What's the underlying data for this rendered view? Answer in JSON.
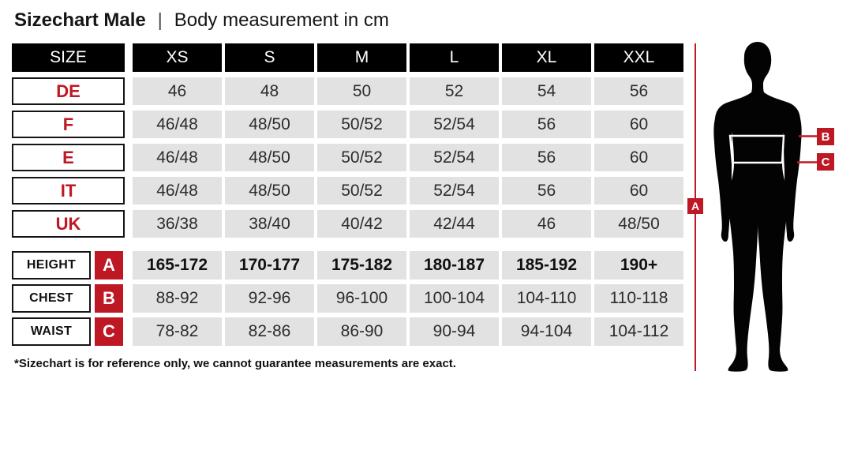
{
  "title": {
    "heading": "Sizechart Male",
    "separator": "|",
    "subtitle": "Body measurement in cm"
  },
  "colors": {
    "accent_red": "#bd1823",
    "cell_gray": "#e2e2e2",
    "header_black": "#000000"
  },
  "table": {
    "header": [
      "SIZE",
      "XS",
      "S",
      "M",
      "L",
      "XL",
      "XXL"
    ],
    "region_rows": [
      {
        "label": "DE",
        "values": [
          "46",
          "48",
          "50",
          "52",
          "54",
          "56"
        ]
      },
      {
        "label": "F",
        "values": [
          "46/48",
          "48/50",
          "50/52",
          "52/54",
          "56",
          "60"
        ]
      },
      {
        "label": "E",
        "values": [
          "46/48",
          "48/50",
          "50/52",
          "52/54",
          "56",
          "60"
        ]
      },
      {
        "label": "IT",
        "values": [
          "46/48",
          "48/50",
          "50/52",
          "52/54",
          "56",
          "60"
        ]
      },
      {
        "label": "UK",
        "values": [
          "36/38",
          "38/40",
          "40/42",
          "42/44",
          "46",
          "48/50"
        ]
      }
    ],
    "measure_rows": [
      {
        "label": "HEIGHT",
        "badge": "A",
        "bold": true,
        "values": [
          "165-172",
          "170-177",
          "175-182",
          "180-187",
          "185-192",
          "190+"
        ]
      },
      {
        "label": "CHEST",
        "badge": "B",
        "bold": false,
        "values": [
          "88-92",
          "92-96",
          "96-100",
          "100-104",
          "104-110",
          "110-118"
        ]
      },
      {
        "label": "WAIST",
        "badge": "C",
        "bold": false,
        "values": [
          "78-82",
          "82-86",
          "86-90",
          "90-94",
          "94-104",
          "104-112"
        ]
      }
    ]
  },
  "footnote": "*Sizechart is for reference only, we cannot guarantee measurements are exact.",
  "figure": {
    "badge_a": "A",
    "badge_b": "B",
    "badge_c": "C"
  },
  "chart_data": {
    "type": "table",
    "title": "Sizechart Male | Body measurement in cm",
    "columns": [
      "SIZE",
      "XS",
      "S",
      "M",
      "L",
      "XL",
      "XXL"
    ],
    "rows": [
      [
        "DE",
        "46",
        "48",
        "50",
        "52",
        "54",
        "56"
      ],
      [
        "F",
        "46/48",
        "48/50",
        "50/52",
        "52/54",
        "56",
        "60"
      ],
      [
        "E",
        "46/48",
        "48/50",
        "50/52",
        "52/54",
        "56",
        "60"
      ],
      [
        "IT",
        "46/48",
        "48/50",
        "50/52",
        "52/54",
        "56",
        "60"
      ],
      [
        "UK",
        "36/38",
        "38/40",
        "40/42",
        "42/44",
        "46",
        "48/50"
      ],
      [
        "HEIGHT (A)",
        "165-172",
        "170-177",
        "175-182",
        "180-187",
        "185-192",
        "190+"
      ],
      [
        "CHEST (B)",
        "88-92",
        "92-96",
        "96-100",
        "100-104",
        "104-110",
        "110-118"
      ],
      [
        "WAIST (C)",
        "78-82",
        "82-86",
        "86-90",
        "90-94",
        "94-104",
        "104-112"
      ]
    ],
    "footnote": "*Sizechart is for reference only, we cannot guarantee measurements are exact.",
    "units": "cm"
  }
}
